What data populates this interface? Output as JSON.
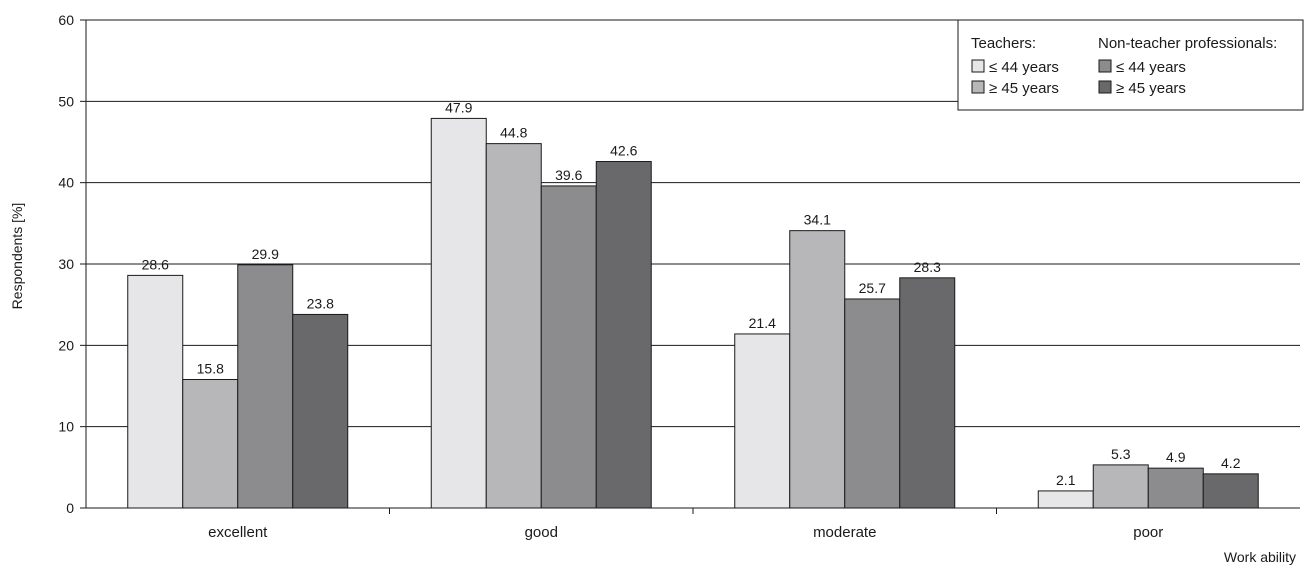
{
  "chart_data": {
    "type": "bar",
    "title": "",
    "xlabel": "Work ability",
    "ylabel": "Respondents [%]",
    "ylim": [
      0,
      60
    ],
    "yticks": [
      "0",
      "10",
      "20",
      "30",
      "40",
      "50",
      "60"
    ],
    "grid": true,
    "legend_position": "top-right",
    "categories": [
      "excellent",
      "good",
      "moderate",
      "poor"
    ],
    "legend_groups": [
      {
        "heading": "Teachers:",
        "series_index": [
          0,
          1
        ]
      },
      {
        "heading": "Non-teacher professionals:",
        "series_index": [
          2,
          3
        ]
      }
    ],
    "series": [
      {
        "name": "≤ 44 years",
        "color": "#e6e6e8",
        "values": [
          28.6,
          47.9,
          21.4,
          2.1
        ],
        "labels": [
          "28.6",
          "47.9",
          "21.4",
          "2.1"
        ]
      },
      {
        "name": "≥ 45 years",
        "color": "#b7b7ba",
        "values": [
          15.8,
          44.8,
          34.1,
          5.3
        ],
        "labels": [
          "15.8",
          "44.8",
          "34.1",
          "5.3"
        ]
      },
      {
        "name": "≤ 44 years",
        "color": "#8c8c8f",
        "values": [
          29.9,
          39.6,
          25.7,
          4.9
        ],
        "labels": [
          "29.9",
          "39.6",
          "25.7",
          "4.9"
        ]
      },
      {
        "name": "≥ 45 years",
        "color": "#69696b",
        "values": [
          23.8,
          42.6,
          28.3,
          4.2
        ],
        "labels": [
          "23.8",
          "42.6",
          "28.3",
          "4.2"
        ]
      }
    ]
  }
}
